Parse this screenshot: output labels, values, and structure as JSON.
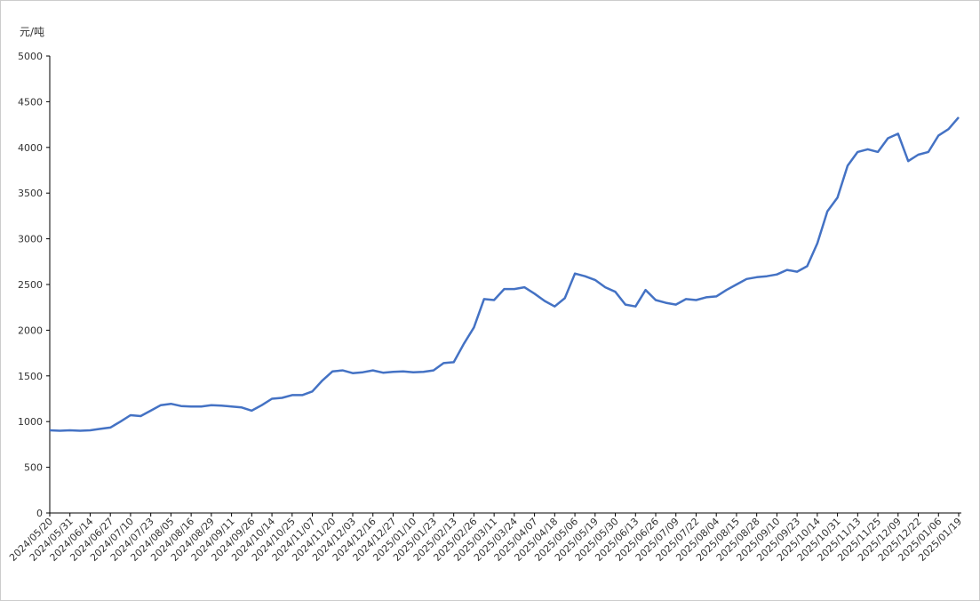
{
  "chart_data": {
    "type": "line",
    "y_label": "元/吨",
    "categories": [
      "2024/05/20",
      null,
      "2024/05/31",
      null,
      "2024/06/14",
      null,
      "2024/06/27",
      null,
      "2024/07/10",
      null,
      "2024/07/23",
      null,
      "2024/08/05",
      null,
      "2024/08/16",
      null,
      "2024/08/29",
      null,
      "2024/09/11",
      null,
      "2024/09/26",
      null,
      "2024/10/14",
      null,
      "2024/10/25",
      null,
      "2024/11/07",
      null,
      "2024/11/20",
      null,
      "2024/12/03",
      null,
      "2024/12/16",
      null,
      "2024/12/27",
      null,
      "2025/01/10",
      null,
      "2025/01/23",
      null,
      "2025/02/13",
      null,
      "2025/02/26",
      null,
      "2025/03/11",
      null,
      "2025/03/24",
      null,
      "2025/04/07",
      null,
      "2025/04/18",
      null,
      "2025/05/06",
      null,
      "2025/05/19",
      null,
      "2025/05/30",
      null,
      "2025/06/13",
      null,
      "2025/06/26",
      null,
      "2025/07/09",
      null,
      "2025/07/22",
      null,
      "2025/08/04",
      null,
      "2025/08/15",
      null,
      "2025/08/28",
      null,
      "2025/09/10",
      null,
      "2025/09/23",
      null,
      "2025/10/14",
      null,
      "2025/10/31",
      null,
      "2025/11/13",
      null,
      "2025/11/25",
      null,
      "2025/12/09",
      null,
      "2025/12/22",
      null,
      "2025/01/06",
      null,
      "2025/01/19"
    ],
    "series": [
      {
        "color": "#4472c4",
        "values": [
          905,
          900,
          905,
          900,
          905,
          920,
          935,
          1000,
          1070,
          1060,
          1120,
          1180,
          1195,
          1170,
          1165,
          1165,
          1180,
          1175,
          1165,
          1155,
          1120,
          1180,
          1250,
          1260,
          1290,
          1290,
          1330,
          1450,
          1550,
          1560,
          1530,
          1540,
          1560,
          1535,
          1545,
          1550,
          1540,
          1545,
          1560,
          1640,
          1650,
          1850,
          2030,
          2340,
          2330,
          2450,
          2450,
          2470,
          2400,
          2320,
          2260,
          2350,
          2620,
          2590,
          2550,
          2470,
          2420,
          2280,
          2260,
          2440,
          2330,
          2300,
          2280,
          2340,
          2330,
          2360,
          2370,
          2440,
          2500,
          2560,
          2580,
          2590,
          2610,
          2660,
          2640,
          2700,
          2950,
          3300,
          3450,
          3800,
          3950,
          3980,
          3950,
          4100,
          4150,
          3850,
          3920,
          3950,
          4130,
          4200,
          4330
        ]
      }
    ],
    "ylim": [
      0,
      5000
    ],
    "yticks": [
      0,
      500,
      1000,
      1500,
      2000,
      2500,
      3000,
      3500,
      4000,
      4500,
      5000
    ]
  }
}
